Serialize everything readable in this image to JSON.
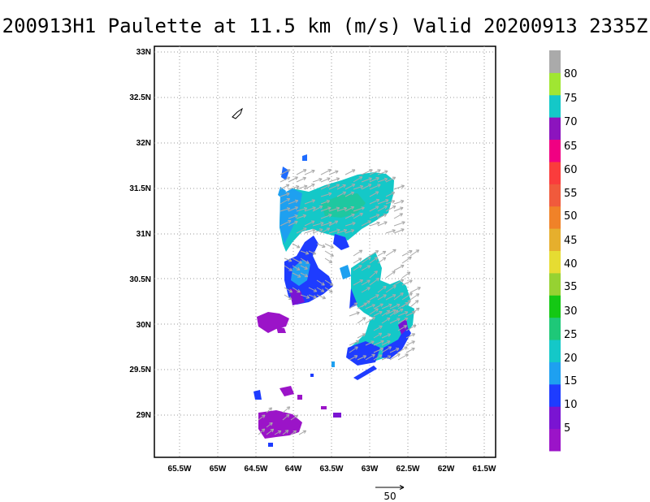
{
  "title": "200913H1 Paulette at 11.5 km (m/s) Valid 20200913 2335Z",
  "map": {
    "lat_labels": [
      "33N",
      "32.5N",
      "32N",
      "31.5N",
      "31N",
      "30.5N",
      "30N",
      "29.5N",
      "29N"
    ],
    "lon_labels": [
      "65.5W",
      "65W",
      "64.5W",
      "64W",
      "63.5W",
      "63W",
      "62.5W",
      "62W",
      "61.5W"
    ],
    "grid": "dotted"
  },
  "colorbar": {
    "labels": [
      "5",
      "10",
      "15",
      "20",
      "25",
      "30",
      "35",
      "40",
      "45",
      "50",
      "55",
      "60",
      "65",
      "70",
      "75",
      "80"
    ],
    "colors": [
      "#9b14c8",
      "#7a14d2",
      "#1e3cff",
      "#1ea0f0",
      "#14c8c8",
      "#1ec878",
      "#14c814",
      "#96d232",
      "#e6dc32",
      "#e6af2d",
      "#f08228",
      "#f05a3c",
      "#fa3c3c",
      "#f00082",
      "#8c14be",
      "#14c8c8",
      "#a0e632",
      "#aaaaaa"
    ]
  },
  "reference_vector": {
    "label": "50"
  }
}
